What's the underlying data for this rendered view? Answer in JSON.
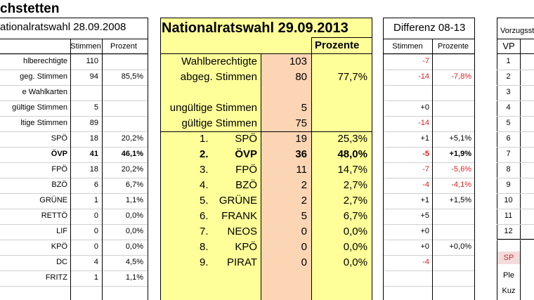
{
  "town_title": "chstetten",
  "left": {
    "title": "ationalratswahl 28.09.2008",
    "col_stimmen": "Stimmen",
    "col_prozent": "Prozent",
    "rows": [
      {
        "label": "hlberechtigte",
        "stimmen": "110",
        "prozent": ""
      },
      {
        "label": "geg. Stimmen",
        "stimmen": "94",
        "prozent": "85,5%"
      },
      {
        "label": "e Wahlkarten",
        "stimmen": "",
        "prozent": ""
      },
      {
        "label": "gültige Stimmen",
        "stimmen": "5",
        "prozent": ""
      },
      {
        "label": "ltige Stimmen",
        "stimmen": "89",
        "prozent": ""
      },
      {
        "label": "SPÖ",
        "stimmen": "18",
        "prozent": "20,2%"
      },
      {
        "label": "ÖVP",
        "stimmen": "41",
        "prozent": "46,1%"
      },
      {
        "label": "FPÖ",
        "stimmen": "18",
        "prozent": "20,2%"
      },
      {
        "label": "BZÖ",
        "stimmen": "6",
        "prozent": "6,7%"
      },
      {
        "label": "GRÜNE",
        "stimmen": "1",
        "prozent": "1,1%"
      },
      {
        "label": "RETTÖ",
        "stimmen": "0",
        "prozent": "0,0%"
      },
      {
        "label": "LIF",
        "stimmen": "0",
        "prozent": "0,0%"
      },
      {
        "label": "KPÖ",
        "stimmen": "0",
        "prozent": "0,0%"
      },
      {
        "label": "DC",
        "stimmen": "4",
        "prozent": "4,5%"
      },
      {
        "label": "FRITZ",
        "stimmen": "1",
        "prozent": "1,1%"
      }
    ]
  },
  "center": {
    "title": "Nationalratswahl 29.09.2013",
    "col_prozente": "Prozente",
    "rows": [
      {
        "num": "",
        "label": "Wahlberechtigte",
        "stimmen": "103",
        "prozent": ""
      },
      {
        "num": "",
        "label": "abgeg. Stimmen",
        "stimmen": "80",
        "prozent": "77,7%"
      },
      {
        "num": "",
        "label": "",
        "stimmen": "",
        "prozent": ""
      },
      {
        "num": "",
        "label": "ungültige Stimmen",
        "stimmen": "5",
        "prozent": ""
      },
      {
        "num": "",
        "label": "gültige Stimmen",
        "stimmen": "75",
        "prozent": ""
      },
      {
        "num": "1.",
        "label": "SPÖ",
        "stimmen": "19",
        "prozent": "25,3%"
      },
      {
        "num": "2.",
        "label": "ÖVP",
        "stimmen": "36",
        "prozent": "48,0%"
      },
      {
        "num": "3.",
        "label": "FPÖ",
        "stimmen": "11",
        "prozent": "14,7%"
      },
      {
        "num": "4.",
        "label": "BZÖ",
        "stimmen": "2",
        "prozent": "2,7%"
      },
      {
        "num": "5.",
        "label": "GRÜNE",
        "stimmen": "2",
        "prozent": "2,7%"
      },
      {
        "num": "6.",
        "label": "FRANK",
        "stimmen": "5",
        "prozent": "6,7%"
      },
      {
        "num": "7.",
        "label": "NEOS",
        "stimmen": "0",
        "prozent": "0,0%"
      },
      {
        "num": "8.",
        "label": "KPÖ",
        "stimmen": "0",
        "prozent": "0,0%"
      },
      {
        "num": "9.",
        "label": "PIRAT",
        "stimmen": "0",
        "prozent": "0,0%"
      }
    ]
  },
  "diff": {
    "title": "Differenz 08-13",
    "col_stimmen": "Stimmen",
    "col_prozente": "Prozente",
    "rows": [
      {
        "stimmen": "-7",
        "prozent": ""
      },
      {
        "stimmen": "-14",
        "prozent": "-7,8%"
      },
      {
        "stimmen": "",
        "prozent": ""
      },
      {
        "stimmen": "+0",
        "prozent": ""
      },
      {
        "stimmen": "-14",
        "prozent": ""
      },
      {
        "stimmen": "+1",
        "prozent": "+5,1%"
      },
      {
        "stimmen": "-5",
        "prozent": "+1,9%"
      },
      {
        "stimmen": "-7",
        "prozent": "-5,6%"
      },
      {
        "stimmen": "-4",
        "prozent": "-4,1%"
      },
      {
        "stimmen": "+1",
        "prozent": "+1,5%"
      },
      {
        "stimmen": "+5",
        "prozent": ""
      },
      {
        "stimmen": "+0",
        "prozent": ""
      },
      {
        "stimmen": "+0",
        "prozent": "+0,0%"
      },
      {
        "stimmen": "-4",
        "prozent": ""
      }
    ]
  },
  "vorzug": {
    "title": "Vorzugsstim",
    "header": "VP",
    "numbers": [
      "1",
      "2",
      "3",
      "4",
      "5",
      "6",
      "7",
      "8",
      "9",
      "10",
      "11",
      "12"
    ],
    "extra": [
      "SP",
      "Ple",
      "Kuz"
    ]
  },
  "colors": {
    "yellow": "#ffff99",
    "peach": "#fcd5b4",
    "pink": "#f2dcdb",
    "red": "#e02020"
  }
}
